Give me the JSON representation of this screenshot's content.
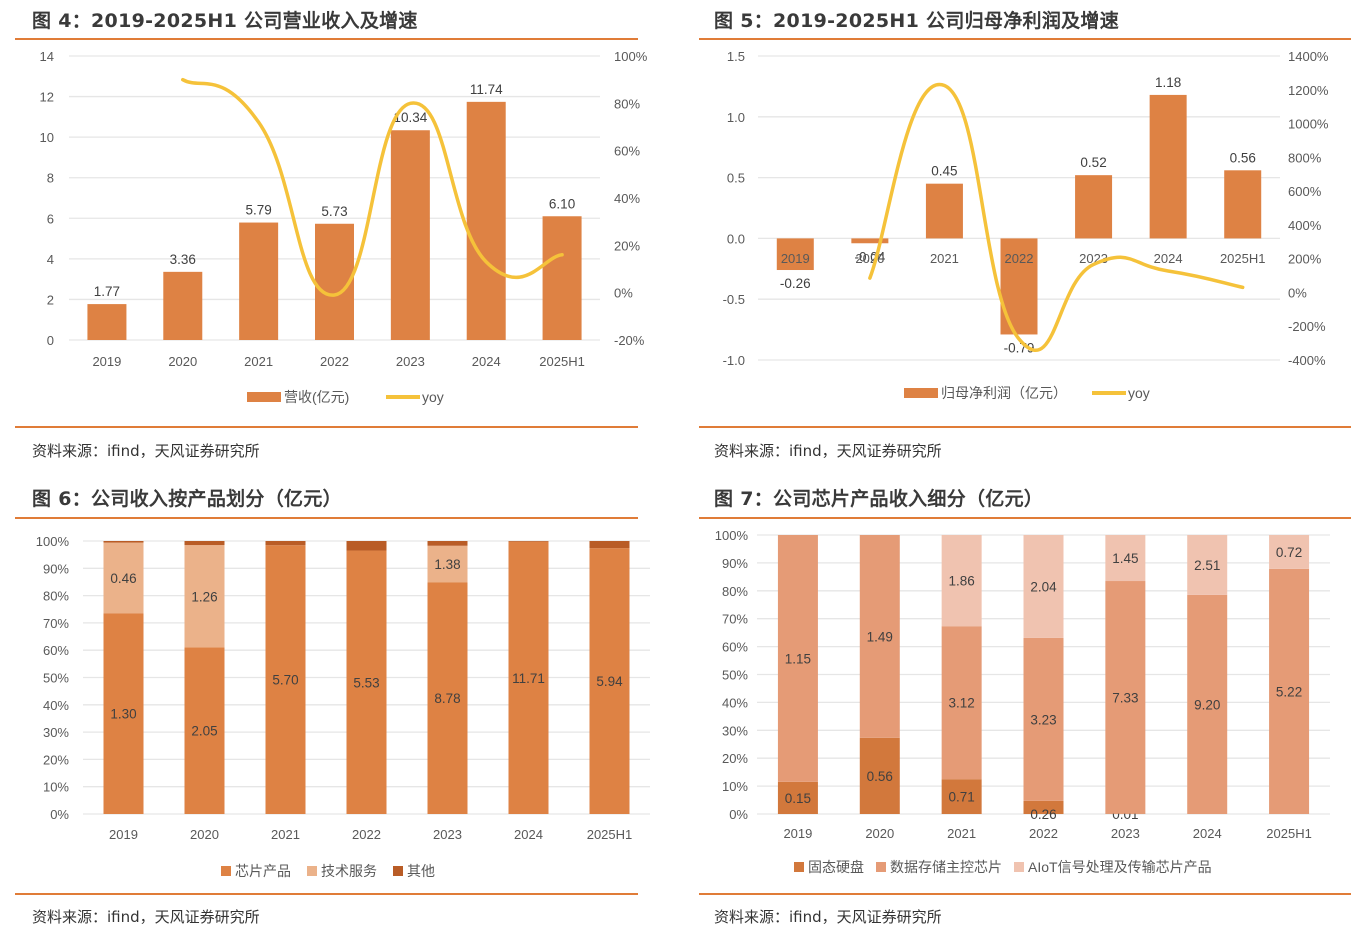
{
  "colors": {
    "accent_rule": "#e07c38",
    "bar": "#de8244",
    "yoy_line": "#f5c23a",
    "fig6_chip": "#de8244",
    "fig6_service": "#ebb28a",
    "fig6_other": "#b95c26",
    "fig7_ssd": "#d2783c",
    "fig7_storage": "#e59b76",
    "fig7_aiot": "#f0c3b0",
    "grid": "#e6e6e6"
  },
  "chart_data": [
    {
      "id": "fig4",
      "type": "bar",
      "title": "图 4：2019-2025H1 公司营业收入及增速",
      "categories": [
        "2019",
        "2020",
        "2021",
        "2022",
        "2023",
        "2024",
        "2025H1"
      ],
      "series": [
        {
          "name": "营收(亿元)",
          "type": "bar",
          "axis": "left",
          "values": [
            1.77,
            3.36,
            5.79,
            5.73,
            10.34,
            11.74,
            6.1
          ],
          "labels": [
            "1.77",
            "3.36",
            "5.79",
            "5.73",
            "10.34",
            "11.74",
            "6.10"
          ]
        },
        {
          "name": "yoy",
          "type": "line",
          "axis": "right",
          "values": [
            null,
            90,
            72,
            -1,
            80,
            13,
            16
          ]
        }
      ],
      "y_left": {
        "min": 0,
        "max": 14,
        "ticks": [
          "0",
          "2",
          "4",
          "6",
          "8",
          "10",
          "12",
          "14"
        ]
      },
      "y_right": {
        "min": -20,
        "max": 100,
        "ticks": [
          "-20%",
          "0%",
          "20%",
          "40%",
          "60%",
          "80%",
          "100%"
        ]
      },
      "grid": true,
      "legend_position": "bottom",
      "source": "资料来源：ifind，天风证券研究所"
    },
    {
      "id": "fig5",
      "type": "bar",
      "title": "图 5：2019-2025H1 公司归母净利润及增速",
      "categories": [
        "2019",
        "2020",
        "2021",
        "2022",
        "2023",
        "2024",
        "2025H1"
      ],
      "series": [
        {
          "name": "归母净利润（亿元）",
          "type": "bar",
          "axis": "left",
          "values": [
            -0.26,
            -0.04,
            0.45,
            -0.79,
            0.52,
            1.18,
            0.56
          ],
          "labels": [
            "-0.26",
            "-0.04",
            "0.45",
            "-0.79",
            "0.52",
            "1.18",
            "0.56"
          ]
        },
        {
          "name": "yoy",
          "type": "line",
          "axis": "right",
          "values": [
            null,
            85,
            1225,
            -276,
            166,
            127,
            30
          ]
        }
      ],
      "y_left": {
        "min": -1.0,
        "max": 1.5,
        "ticks": [
          "-1.0",
          "-0.5",
          "0.0",
          "0.5",
          "1.0",
          "1.5"
        ]
      },
      "y_right": {
        "min": -400,
        "max": 1400,
        "ticks": [
          "-400%",
          "-200%",
          "0%",
          "200%",
          "400%",
          "600%",
          "800%",
          "1000%",
          "1200%",
          "1400%"
        ]
      },
      "grid": true,
      "legend_position": "bottom",
      "source": "资料来源：ifind，天风证券研究所"
    },
    {
      "id": "fig6",
      "type": "bar",
      "stacked": "percent",
      "title": "图 6：公司收入按产品划分（亿元）",
      "categories": [
        "2019",
        "2020",
        "2021",
        "2022",
        "2023",
        "2024",
        "2025H1"
      ],
      "series": [
        {
          "name": "芯片产品",
          "values": [
            1.3,
            2.05,
            5.7,
            5.53,
            8.78,
            11.71,
            5.94
          ],
          "labels": [
            "1.30",
            "2.05",
            "5.70",
            "5.53",
            "8.78",
            "11.71",
            "5.94"
          ]
        },
        {
          "name": "技术服务",
          "values": [
            0.46,
            1.26,
            0,
            0,
            1.38,
            0,
            0
          ],
          "labels": [
            "0.46",
            "1.26",
            "",
            "",
            "1.38",
            "",
            ""
          ]
        },
        {
          "name": "其他",
          "values": [
            0.01,
            0.05,
            0.09,
            0.2,
            0.18,
            0.03,
            0.16
          ],
          "labels": [
            "",
            "",
            "",
            "",
            "",
            "",
            ""
          ]
        }
      ],
      "y": {
        "min": 0,
        "max": 100,
        "ticks": [
          "0%",
          "10%",
          "20%",
          "30%",
          "40%",
          "50%",
          "60%",
          "70%",
          "80%",
          "90%",
          "100%"
        ]
      },
      "grid": true,
      "legend_position": "bottom",
      "source": "资料来源：ifind，天风证券研究所"
    },
    {
      "id": "fig7",
      "type": "bar",
      "stacked": "percent",
      "title": "图 7：公司芯片产品收入细分（亿元）",
      "categories": [
        "2019",
        "2020",
        "2021",
        "2022",
        "2023",
        "2024",
        "2025H1"
      ],
      "series": [
        {
          "name": "固态硬盘",
          "values": [
            0.15,
            0.56,
            0.71,
            0.26,
            0.01,
            0,
            0
          ],
          "labels": [
            "0.15",
            "0.56",
            "0.71",
            "0.26",
            "0.01",
            "",
            ""
          ]
        },
        {
          "name": "数据存储主控芯片",
          "values": [
            1.15,
            1.49,
            3.12,
            3.23,
            7.33,
            9.2,
            5.22
          ],
          "labels": [
            "1.15",
            "1.49",
            "3.12",
            "3.23",
            "7.33",
            "9.20",
            "5.22"
          ]
        },
        {
          "name": "AIoT信号处理及传输芯片产品",
          "values": [
            0,
            0,
            1.86,
            2.04,
            1.45,
            2.51,
            0.72
          ],
          "labels": [
            "",
            "",
            "1.86",
            "2.04",
            "1.45",
            "2.51",
            "0.72"
          ]
        }
      ],
      "y": {
        "min": 0,
        "max": 100,
        "ticks": [
          "0%",
          "10%",
          "20%",
          "30%",
          "40%",
          "50%",
          "60%",
          "70%",
          "80%",
          "90%",
          "100%"
        ]
      },
      "grid": true,
      "legend_position": "bottom",
      "source": "资料来源：ifind，天风证券研究所"
    }
  ]
}
